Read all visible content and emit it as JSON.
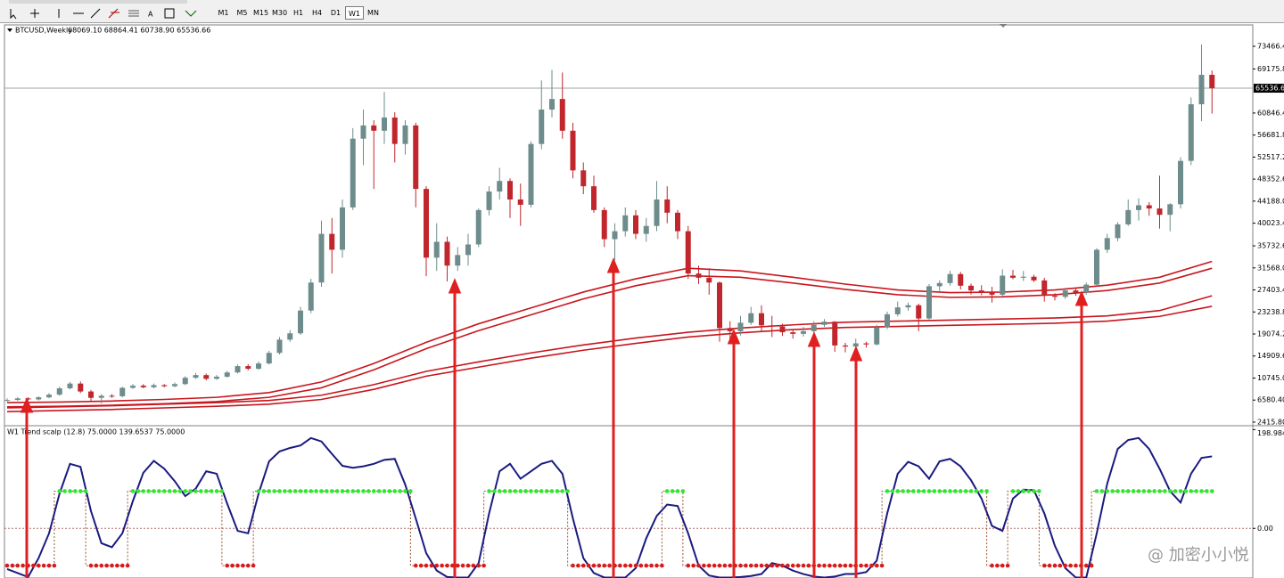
{
  "toolbar": {
    "timeframes": [
      "M1",
      "M5",
      "M15",
      "M30",
      "H1",
      "H4",
      "D1",
      "W1",
      "MN"
    ],
    "active": "W1"
  },
  "chart_data": [
    {
      "type": "candlestick",
      "title": "BTCUSD,Weekly",
      "ohlc_label": "68069.10 68864.41 60738.90 65536.66",
      "up_color": "#6e8c8c",
      "down_color": "#c0262c",
      "ylim": [
        1900,
        77500
      ],
      "yticks": [
        {
          "value": 73466.4,
          "label": "73466.40"
        },
        {
          "value": 69175.8,
          "label": "69175.80"
        },
        {
          "value": 60846.4,
          "label": "60846.40"
        },
        {
          "value": 56681.8,
          "label": "56681.80"
        },
        {
          "value": 52517.2,
          "label": "52517.20"
        },
        {
          "value": 48352.6,
          "label": "48352.60"
        },
        {
          "value": 44188,
          "label": "44188.00"
        },
        {
          "value": 40023.4,
          "label": "40023.40"
        },
        {
          "value": 35732.6,
          "label": "35732.60"
        },
        {
          "value": 31568,
          "label": "31568.00"
        },
        {
          "value": 27403.4,
          "label": "27403.40"
        },
        {
          "value": 23238.8,
          "label": "23238.80"
        },
        {
          "value": 19074.2,
          "label": "19074.20"
        },
        {
          "value": 14909.6,
          "label": "14909.60"
        },
        {
          "value": 10745,
          "label": "10745.00"
        },
        {
          "value": 6580.4,
          "label": "6580.40"
        },
        {
          "value": 2415.8,
          "label": "2415.80"
        }
      ],
      "current_price": {
        "value": 65536.66,
        "label": "65536.66"
      },
      "open": [
        6500,
        6600,
        6900,
        6700,
        7100,
        7600,
        8800,
        9700,
        8200,
        7000,
        7400,
        7300,
        8900,
        9300,
        9000,
        9400,
        9200,
        9600,
        10800,
        11300,
        10600,
        11000,
        11800,
        13000,
        12500,
        13500,
        15500,
        18000,
        19200,
        23500,
        28800,
        38000,
        35000,
        43000,
        56000,
        58500,
        57500,
        60000,
        55000,
        58500,
        46500,
        33500,
        36500,
        32000,
        34000,
        36000,
        42500,
        46000,
        48000,
        44500,
        43500,
        55000,
        61500,
        63500,
        57500,
        50000,
        47000,
        42500,
        37000,
        38500,
        41500,
        38000,
        39500,
        44500,
        42000,
        38500,
        30500,
        29700,
        28800,
        20200,
        19600,
        21200,
        23000,
        20700,
        20500,
        19400,
        19100,
        19600,
        20800,
        21400,
        16900,
        16700,
        17300,
        17100,
        20300,
        22800,
        24100,
        24500,
        22000,
        28100,
        28700,
        30400,
        28200,
        27300,
        26900,
        26500,
        30100,
        29700,
        29900,
        29200,
        26300,
        26100,
        27300,
        26900,
        28400,
        35000,
        37200,
        39800,
        42500,
        43400,
        42800,
        41600,
        43600,
        51800,
        62500,
        68069.1
      ],
      "high": [
        6900,
        7100,
        7100,
        7300,
        7900,
        9100,
        10000,
        10100,
        8500,
        7700,
        7700,
        9100,
        9600,
        9600,
        9700,
        9600,
        9900,
        11100,
        11700,
        11600,
        11300,
        12100,
        13300,
        13400,
        13900,
        15900,
        18500,
        19800,
        24200,
        29500,
        40500,
        41000,
        44500,
        58000,
        61500,
        59500,
        64800,
        61000,
        59500,
        59000,
        47000,
        40000,
        37500,
        35500,
        38000,
        42800,
        47000,
        50500,
        48500,
        47500,
        55500,
        67000,
        69000,
        68500,
        59000,
        51500,
        49000,
        43000,
        40000,
        43000,
        42500,
        41000,
        48000,
        47000,
        42500,
        39500,
        32000,
        31500,
        29000,
        21500,
        22500,
        24200,
        24500,
        22500,
        21000,
        20000,
        20400,
        21500,
        21900,
        21500,
        17400,
        18200,
        17600,
        20800,
        23300,
        25200,
        25000,
        24800,
        28500,
        29200,
        31000,
        30800,
        28600,
        28300,
        28000,
        31300,
        31200,
        31000,
        30300,
        29700,
        26800,
        27800,
        27800,
        28800,
        35300,
        38000,
        40200,
        44500,
        44700,
        44000,
        49000,
        43800,
        52500,
        63800,
        73800,
        68864.41
      ],
      "low": [
        6300,
        6400,
        6500,
        6500,
        6900,
        7400,
        8600,
        7900,
        6400,
        5900,
        7000,
        7100,
        8700,
        8800,
        8800,
        9000,
        9000,
        9400,
        10600,
        10300,
        10400,
        10800,
        11600,
        12200,
        12300,
        13300,
        15200,
        17600,
        18900,
        23000,
        28000,
        30500,
        33500,
        42500,
        51000,
        46500,
        55000,
        51500,
        53000,
        43000,
        30000,
        31000,
        29000,
        31000,
        32000,
        35500,
        41500,
        44500,
        41000,
        39500,
        43000,
        54000,
        60000,
        56000,
        48500,
        45500,
        42000,
        35500,
        33000,
        37500,
        37000,
        36500,
        38500,
        40000,
        37000,
        29500,
        28500,
        26500,
        17600,
        17600,
        18800,
        20800,
        19600,
        18500,
        18700,
        18200,
        18600,
        19200,
        20400,
        15700,
        15600,
        16400,
        16500,
        16900,
        20000,
        22400,
        23500,
        19600,
        21800,
        27200,
        28200,
        27500,
        26500,
        26400,
        25000,
        26200,
        29400,
        29100,
        28900,
        25200,
        25400,
        25700,
        26300,
        26500,
        28300,
        34400,
        36600,
        39500,
        40500,
        41400,
        39000,
        38500,
        42800,
        51000,
        59300,
        60738.9
      ],
      "close": [
        6600,
        6900,
        6700,
        7100,
        7600,
        8800,
        9700,
        8200,
        7000,
        7400,
        7300,
        8900,
        9300,
        9000,
        9400,
        9200,
        9600,
        10800,
        11300,
        10600,
        11000,
        11800,
        13000,
        12500,
        13500,
        15500,
        18000,
        19200,
        23500,
        28800,
        38000,
        35000,
        43000,
        56000,
        58500,
        57500,
        60000,
        55000,
        58500,
        46500,
        33500,
        36500,
        32000,
        34000,
        36000,
        42500,
        46000,
        48000,
        44500,
        43500,
        55000,
        61500,
        63500,
        57500,
        50000,
        47000,
        42500,
        37000,
        38500,
        41500,
        38000,
        39500,
        44500,
        42000,
        38500,
        30500,
        29700,
        28800,
        20200,
        19600,
        21200,
        23000,
        20700,
        20500,
        19400,
        19100,
        19600,
        20800,
        21400,
        16900,
        16700,
        17300,
        17100,
        20300,
        22800,
        24100,
        24500,
        22000,
        28100,
        28700,
        30400,
        28200,
        27300,
        26900,
        26500,
        30100,
        29700,
        29900,
        29200,
        26300,
        26100,
        27300,
        26900,
        28400,
        35000,
        37200,
        39800,
        42500,
        43400,
        42800,
        41600,
        43600,
        51800,
        62500,
        68069.1,
        65536.66
      ],
      "moving_averages": {
        "x": [
          0,
          5,
          10,
          15,
          20,
          25,
          30,
          35,
          40,
          45,
          50,
          55,
          60,
          65,
          70,
          75,
          80,
          85,
          90,
          95,
          100,
          105,
          110,
          115
        ],
        "series": [
          {
            "color": "#c8161d",
            "values": [
              6100,
              6200,
              6400,
              6700,
              7100,
              8000,
              10000,
              13500,
              17500,
              21000,
              24000,
              27000,
              29500,
              31500,
              31000,
              29800,
              28500,
              27400,
              26900,
              27000,
              27400,
              28300,
              29800,
              32800
            ]
          },
          {
            "color": "#c8161d",
            "values": [
              5300,
              5400,
              5600,
              5900,
              6300,
              7100,
              8900,
              12300,
              16300,
              19700,
              22700,
              25700,
              28200,
              30100,
              29800,
              28700,
              27500,
              26500,
              26000,
              26100,
              26500,
              27300,
              28700,
              31500
            ]
          },
          {
            "color": "#c8161d",
            "values": [
              5100,
              5300,
              5500,
              5800,
              6100,
              6500,
              7500,
              9500,
              12000,
              13800,
              15500,
              17000,
              18300,
              19400,
              20200,
              20800,
              21300,
              21500,
              21700,
              21900,
              22100,
              22500,
              23500,
              26300
            ]
          },
          {
            "color": "#c8161d",
            "values": [
              4400,
              4600,
              4800,
              5100,
              5400,
              5800,
              6700,
              8600,
              11100,
              12800,
              14500,
              16000,
              17300,
              18500,
              19300,
              19900,
              20300,
              20500,
              20700,
              20900,
              21100,
              21500,
              22400,
              24300
            ]
          }
        ]
      }
    },
    {
      "type": "oscillator",
      "title": "W1 Trend scalp (12.8) 75.0000 139.6537 75.0000",
      "ylim": [
        -100,
        205
      ],
      "yticks": [
        {
          "value": 198.9842,
          "label": "198.9842"
        },
        {
          "value": 0,
          "label": "0.00"
        }
      ],
      "series": [
        {
          "color": "#1a1a80",
          "values": [
            -82,
            -90,
            -98,
            -60,
            -10,
            70,
            130,
            124,
            35,
            -30,
            -38,
            -10,
            55,
            112,
            136,
            120,
            95,
            65,
            80,
            115,
            110,
            50,
            -5,
            -10,
            70,
            135,
            155,
            162,
            167,
            182,
            175,
            150,
            126,
            122,
            125,
            130,
            138,
            140,
            88,
            20,
            -50,
            -85,
            -98,
            -99,
            -99,
            -70,
            30,
            115,
            130,
            100,
            115,
            130,
            136,
            110,
            20,
            -60,
            -90,
            -99,
            -99,
            -99,
            -80,
            -20,
            25,
            48,
            45,
            -10,
            -75,
            -95,
            -99,
            -99,
            -98,
            -96,
            -92,
            -70,
            -75,
            -85,
            -92,
            -97,
            -99,
            -97,
            -92,
            -92,
            -88,
            -65,
            30,
            110,
            134,
            125,
            100,
            135,
            140,
            125,
            97,
            60,
            5,
            -5,
            60,
            78,
            77,
            30,
            -35,
            -80,
            -99,
            -99,
            -10,
            90,
            160,
            178,
            182,
            160,
            120,
            75,
            52,
            110,
            142,
            145
          ]
        }
      ],
      "state": {
        "up_color": "#2ee82e",
        "down_color": "#d41c1c",
        "line_color": "#a0522d",
        "values": [
          -75,
          -75,
          -75,
          -75,
          -75,
          75,
          75,
          75,
          -75,
          -75,
          -75,
          -75,
          75,
          75,
          75,
          75,
          75,
          75,
          75,
          75,
          75,
          -75,
          -75,
          -75,
          75,
          75,
          75,
          75,
          75,
          75,
          75,
          75,
          75,
          75,
          75,
          75,
          75,
          75,
          75,
          -75,
          -75,
          -75,
          -75,
          -75,
          -75,
          -75,
          75,
          75,
          75,
          75,
          75,
          75,
          75,
          75,
          -75,
          -75,
          -75,
          -75,
          -75,
          -75,
          -75,
          -75,
          -75,
          75,
          75,
          -75,
          -75,
          -75,
          -75,
          -75,
          -75,
          -75,
          -75,
          -75,
          -75,
          -75,
          -75,
          -75,
          -75,
          -75,
          -75,
          -75,
          -75,
          -75,
          75,
          75,
          75,
          75,
          75,
          75,
          75,
          75,
          75,
          75,
          -75,
          -75,
          75,
          75,
          75,
          -75,
          -75,
          -75,
          -75,
          -75,
          75,
          75,
          75,
          75,
          75,
          75,
          75,
          75,
          75,
          75,
          75,
          75
        ]
      }
    }
  ],
  "watermark": "@ 加密小小悦"
}
